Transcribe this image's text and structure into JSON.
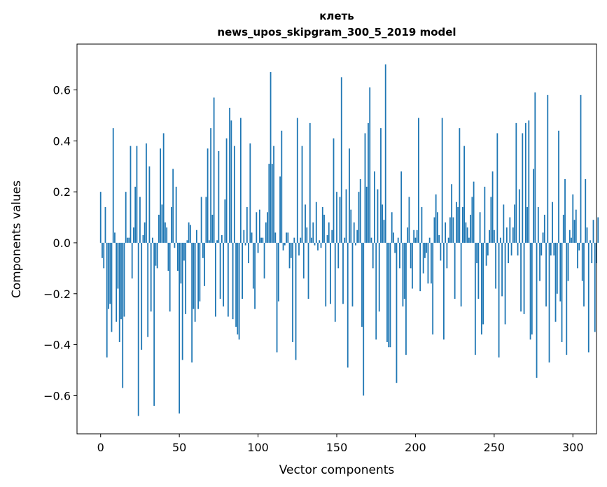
{
  "chart_data": {
    "type": "bar",
    "title_lines": [
      "клеть",
      "news_upos_skipgram_300_5_2019 model"
    ],
    "xlabel": "Vector components",
    "ylabel": "Components values",
    "xlim": [
      -15,
      315
    ],
    "ylim": [
      -0.75,
      0.78
    ],
    "x_ticks": [
      0,
      50,
      100,
      150,
      200,
      250,
      300
    ],
    "x_tick_labels": [
      "0",
      "50",
      "100",
      "150",
      "200",
      "250",
      "300"
    ],
    "y_ticks": [
      -0.6,
      -0.4,
      -0.2,
      0.0,
      0.2,
      0.4,
      0.6
    ],
    "y_tick_labels": [
      "−0.6",
      "−0.4",
      "−0.2",
      "0.0",
      "0.2",
      "0.4",
      "0.6"
    ],
    "bar_color": "#1f77b4",
    "bar_width": 0.8,
    "values": [
      0.2,
      -0.06,
      -0.1,
      0.14,
      -0.45,
      -0.26,
      -0.24,
      -0.35,
      0.45,
      0.04,
      -0.31,
      -0.18,
      -0.39,
      -0.3,
      -0.57,
      -0.29,
      0.2,
      0.02,
      0.02,
      0.38,
      -0.14,
      0.06,
      0.22,
      0.38,
      -0.68,
      0.18,
      -0.42,
      0.03,
      0.08,
      0.39,
      -0.37,
      0.3,
      -0.27,
      0.02,
      -0.64,
      -0.09,
      -0.1,
      0.11,
      0.37,
      0.15,
      0.43,
      0.08,
      0.06,
      -0.11,
      -0.27,
      0.14,
      0.29,
      -0.02,
      0.22,
      -0.11,
      -0.67,
      -0.16,
      -0.46,
      -0.07,
      -0.28,
      0.01,
      0.08,
      0.07,
      -0.47,
      -0.26,
      -0.31,
      0.05,
      -0.26,
      -0.23,
      0.18,
      -0.06,
      -0.17,
      0.18,
      0.37,
      0.01,
      0.45,
      0.11,
      0.57,
      -0.29,
      0.01,
      0.36,
      -0.22,
      0.03,
      -0.25,
      0.17,
      0.41,
      -0.29,
      0.53,
      0.48,
      -0.3,
      0.38,
      -0.33,
      -0.36,
      -0.38,
      0.49,
      -0.22,
      0.05,
      -0.01,
      0.14,
      -0.08,
      0.39,
      0.04,
      -0.18,
      -0.26,
      0.12,
      -0.04,
      0.13,
      0.02,
      0.02,
      -0.14,
      0.08,
      0.12,
      0.31,
      0.67,
      0.31,
      0.38,
      0.04,
      -0.43,
      -0.23,
      0.26,
      0.44,
      -0.03,
      -0.01,
      0.04,
      0.04,
      -0.1,
      -0.06,
      -0.39,
      0.02,
      -0.46,
      0.49,
      -0.05,
      0.02,
      0.38,
      -0.14,
      0.15,
      0.06,
      -0.22,
      0.47,
      0.02,
      0.08,
      -0.01,
      0.16,
      -0.03,
      0.01,
      -0.02,
      0.14,
      0.11,
      -0.25,
      0.03,
      0.08,
      -0.24,
      0.05,
      0.41,
      -0.31,
      0.2,
      -0.1,
      0.18,
      0.65,
      -0.24,
      0.02,
      0.21,
      -0.49,
      0.37,
      0.13,
      -0.25,
      0.08,
      -0.01,
      0.05,
      0.2,
      0.25,
      -0.33,
      -0.6,
      0.43,
      0.22,
      0.47,
      0.61,
      0.02,
      -0.1,
      0.28,
      -0.38,
      0.21,
      -0.27,
      0.45,
      0.15,
      0.09,
      0.7,
      -0.39,
      -0.41,
      -0.41,
      0.12,
      0.04,
      -0.04,
      -0.55,
      0.02,
      -0.1,
      0.28,
      -0.25,
      -0.22,
      -0.44,
      0.06,
      0.18,
      -0.1,
      -0.18,
      0.05,
      0.02,
      0.05,
      0.49,
      -0.19,
      0.14,
      -0.12,
      -0.06,
      -0.04,
      -0.16,
      0.02,
      -0.16,
      -0.36,
      0.1,
      0.19,
      0.12,
      0.03,
      -0.07,
      0.49,
      -0.38,
      0.08,
      -0.1,
      0.02,
      0.1,
      0.23,
      0.1,
      -0.22,
      0.16,
      0.14,
      0.45,
      -0.25,
      0.14,
      0.38,
      0.08,
      0.06,
      0.02,
      0.11,
      0.18,
      0.24,
      -0.44,
      -0.08,
      -0.22,
      0.12,
      -0.36,
      -0.32,
      0.22,
      -0.09,
      -0.05,
      0.05,
      0.18,
      0.28,
      0.05,
      -0.18,
      0.43,
      -0.45,
      0.02,
      -0.21,
      0.15,
      -0.32,
      0.06,
      -0.08,
      0.1,
      -0.05,
      0.06,
      0.15,
      0.47,
      -0.05,
      0.21,
      -0.27,
      0.43,
      -0.28,
      0.47,
      0.14,
      0.48,
      -0.38,
      -0.36,
      0.29,
      0.59,
      -0.53,
      0.14,
      -0.15,
      -0.05,
      0.04,
      0.11,
      -0.25,
      0.58,
      -0.47,
      -0.05,
      0.16,
      -0.05,
      -0.31,
      -0.2,
      0.44,
      -0.23,
      -0.39,
      0.11,
      0.25,
      -0.44,
      -0.15,
      0.05,
      0.02,
      0.19,
      0.09,
      0.13,
      -0.1,
      -0.03,
      0.58,
      -0.15,
      -0.25,
      0.25,
      0.06,
      -0.43,
      0.01,
      -0.08,
      0.09,
      -0.35,
      -0.08,
      0.1
    ]
  }
}
